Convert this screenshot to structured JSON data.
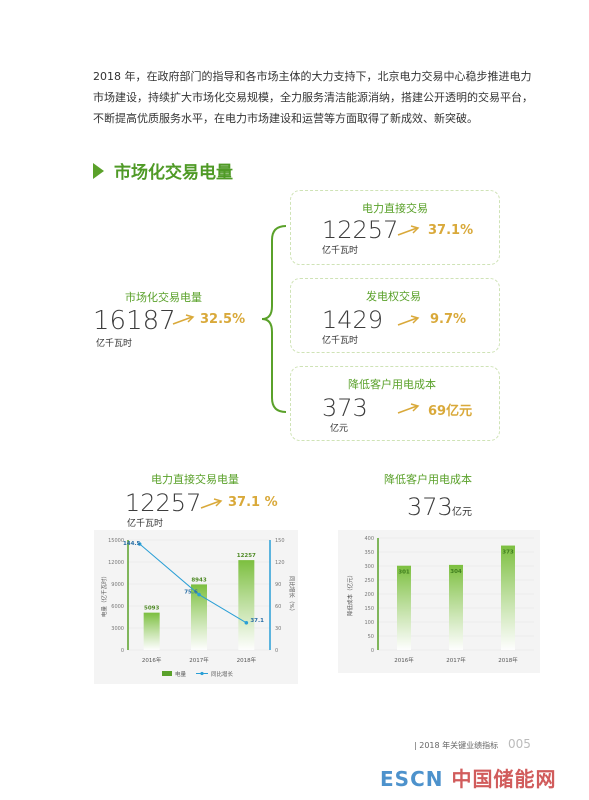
{
  "intro": "2018 年，在政府部门的指导和各市场主体的大力支持下，北京电力交易中心稳步推进电力市场建设，持续扩大市场化交易规模，全力服务清洁能源消纳，搭建公开透明的交易平台，不断提高优质服务水平，在电力市场建设和运营等方面取得了新成效、新突破。",
  "section_title": "市场化交易电量",
  "total": {
    "label": "市场化交易电量",
    "value": "16187",
    "unit": "亿千瓦时",
    "growth": "32.5%"
  },
  "boxes": [
    {
      "label": "电力直接交易",
      "value": "12257",
      "unit": "亿千瓦时",
      "growth": "37.1%"
    },
    {
      "label": "发电权交易",
      "value": "1429",
      "unit": "亿千瓦时",
      "growth": "9.7%"
    },
    {
      "label": "降低客户用电成本",
      "value": "373",
      "unit": "亿元",
      "growth": "69亿元"
    }
  ],
  "left_summary": {
    "title": "电力直接交易电量",
    "value": "12257",
    "unit": "亿千瓦时",
    "growth": "37.1 %"
  },
  "right_summary": {
    "title": "降低客户用电成本",
    "value": "373",
    "unit": "亿元"
  },
  "footer": {
    "page_label": "2018 年关键业绩指标",
    "page_number": "005"
  },
  "watermark": {
    "latin": "ESCN",
    "cn": "中国储能网"
  },
  "colors": {
    "green": "#5aa12a",
    "gold": "#d9a93a",
    "blue": "#2a9fd6"
  },
  "chart_data": [
    {
      "type": "bar",
      "categories": [
        "2016年",
        "2017年",
        "2018年"
      ],
      "series": [
        {
          "name": "电量",
          "type": "bar",
          "values": [
            5093,
            8943,
            12257
          ]
        },
        {
          "name": "同比增长",
          "type": "line",
          "axis": "right",
          "values": [
            144.5,
            75.6,
            37.1
          ]
        }
      ],
      "ylabel": "电量（亿千瓦时）",
      "ylabel_right": "同比增长（%）",
      "ylim": [
        0,
        15000
      ],
      "ylim_right": [
        0,
        150
      ],
      "yticks": [
        0,
        3000,
        6000,
        9000,
        12000,
        15000
      ],
      "yticks_right": [
        0,
        30,
        60,
        90,
        120,
        150
      ],
      "legend": "bottom"
    },
    {
      "type": "bar",
      "categories": [
        "2016年",
        "2017年",
        "2018年"
      ],
      "values": [
        301,
        304,
        373
      ],
      "ylabel": "降低成本（亿元）",
      "ylim": [
        0,
        400
      ],
      "yticks": [
        0,
        50,
        100,
        150,
        200,
        250,
        300,
        350,
        400
      ]
    }
  ]
}
